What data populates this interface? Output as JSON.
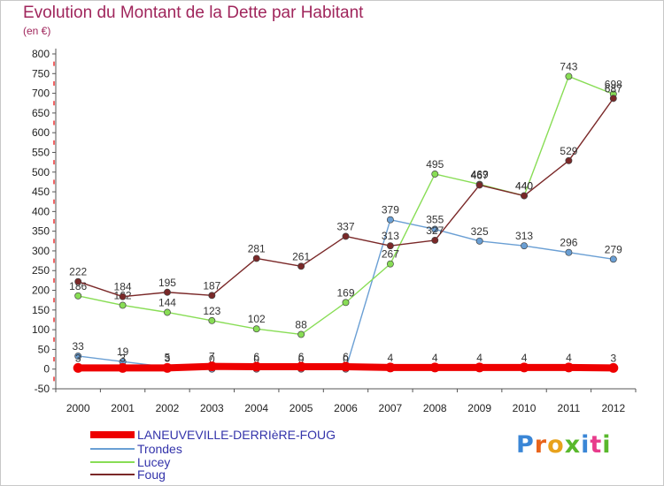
{
  "title": "Evolution du Montant de la Dette par Habitant",
  "unit_label": "(en €)",
  "logo_text": "Proxiti",
  "chart_data": {
    "type": "line",
    "title": "Evolution du Montant de la Dette par Habitant",
    "ylabel": "(en €)",
    "xlabel": "",
    "x": [
      "2000",
      "2001",
      "2002",
      "2003",
      "2004",
      "2005",
      "2006",
      "2007",
      "2008",
      "2009",
      "2010",
      "2011",
      "2012"
    ],
    "ylim": [
      -50,
      800
    ],
    "yticks": [
      -50,
      0,
      50,
      100,
      150,
      200,
      250,
      300,
      350,
      400,
      450,
      500,
      550,
      600,
      650,
      700,
      750,
      800
    ],
    "grid": false,
    "legend_position": "bottom-left",
    "series": [
      {
        "name": "LANEUVEVILLE-DERRIèRE-FOUG",
        "color": "#ee0000",
        "values": [
          3,
          3,
          3,
          7,
          6,
          6,
          6,
          4,
          4,
          4,
          4,
          4,
          3
        ],
        "labels": [
          "3",
          "3",
          "3",
          "7",
          "6",
          "6",
          "6",
          "4",
          "4",
          "4",
          "4",
          "4",
          "3"
        ]
      },
      {
        "name": "Trondes",
        "color": "#6a9fd4",
        "values": [
          33,
          19,
          5,
          0,
          0,
          0,
          0,
          379,
          355,
          325,
          313,
          296,
          279
        ],
        "labels": [
          "33",
          "19",
          "5",
          "0",
          "0",
          "0",
          "0",
          "379",
          "355",
          "325",
          "313",
          "296",
          "279"
        ]
      },
      {
        "name": "Lucey",
        "color": "#88dd55",
        "values": [
          186,
          162,
          144,
          123,
          102,
          88,
          169,
          267,
          495,
          469,
          440,
          743,
          698
        ],
        "labels": [
          "186",
          "162",
          "144",
          "123",
          "102",
          "88",
          "169",
          "267",
          "495",
          "469",
          "440",
          "743",
          "698"
        ]
      },
      {
        "name": "Foug",
        "color": "#7a2828",
        "values": [
          222,
          184,
          195,
          187,
          281,
          261,
          337,
          313,
          327,
          467,
          440,
          529,
          687
        ],
        "labels": [
          "222",
          "184",
          "195",
          "187",
          "281",
          "261",
          "337",
          "313",
          "327",
          "467",
          "440",
          "529",
          "687"
        ]
      }
    ]
  }
}
